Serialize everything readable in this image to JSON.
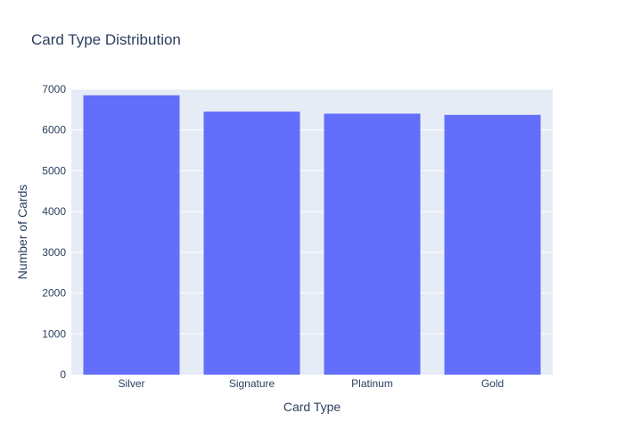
{
  "chart_data": {
    "type": "bar",
    "title": "Card Type Distribution",
    "xlabel": "Card Type",
    "ylabel": "Number of Cards",
    "categories": [
      "Silver",
      "Signature",
      "Platinum",
      "Gold"
    ],
    "values": [
      6850,
      6450,
      6400,
      6370
    ],
    "ylim": [
      0,
      7000
    ],
    "yticks": [
      0,
      1000,
      2000,
      3000,
      4000,
      5000,
      6000,
      7000
    ],
    "grid": true,
    "legend": "none",
    "colors": {
      "bar": "#636efa",
      "plot_background": "#e5ecf6",
      "gridline": "#ffffff",
      "text": "#2a3f5f"
    }
  }
}
